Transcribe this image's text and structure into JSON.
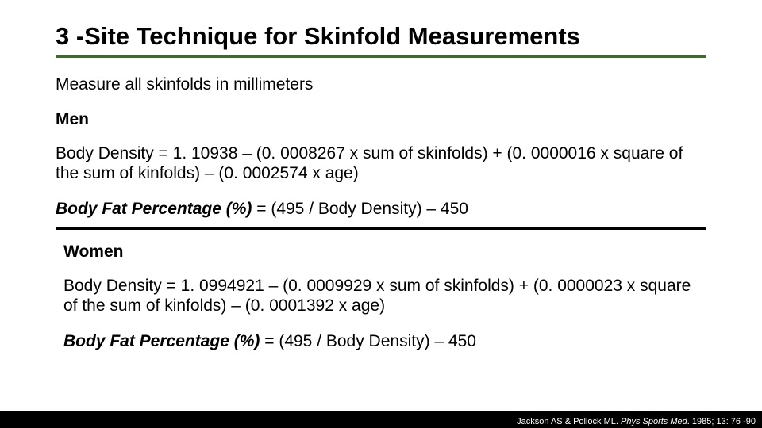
{
  "colors": {
    "title_underline": "#446635",
    "divider": "#000000",
    "footer_bg": "#000000",
    "text": "#000000",
    "footer_text": "#ffffff",
    "background": "#ffffff"
  },
  "typography": {
    "title_fontsize": 31,
    "body_fontsize": 21,
    "citation_fontsize": 11,
    "title_weight": "bold"
  },
  "title": "3 -Site Technique for Skinfold Measurements",
  "instruction": "Measure all skinfolds in millimeters",
  "men": {
    "heading": "Men",
    "density_formula": "Body Density = 1. 10938 – (0. 0008267 x sum of skinfolds) + (0. 0000016 x square of the sum of kinfolds) – (0. 0002574 x age)",
    "bodyfat_label": "Body Fat Percentage (%)",
    "bodyfat_rest": " = (495 / Body Density) – 450"
  },
  "women": {
    "heading": "Women",
    "density_formula": "Body Density = 1. 0994921 – (0. 0009929 x sum of skinfolds) + (0. 0000023 x square of the sum of kinfolds) – (0. 0001392 x age)",
    "bodyfat_label": "Body Fat Percentage (%)",
    "bodyfat_rest": " = (495 / Body Density) – 450"
  },
  "citation": {
    "authors": "Jackson AS & Pollock ML. ",
    "journal": "Phys Sports Med",
    "rest": ". 1985; 13: 76 -90"
  }
}
